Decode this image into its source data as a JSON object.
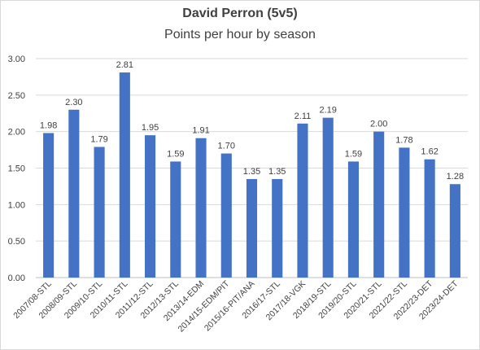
{
  "chart_data": {
    "type": "bar",
    "title": "David Perron (5v5)",
    "subtitle": "Points per hour by season",
    "xlabel": "",
    "ylabel": "",
    "ylim": [
      0,
      3
    ],
    "yticks": [
      "0.00",
      "0.50",
      "1.00",
      "1.50",
      "2.00",
      "2.50",
      "3.00"
    ],
    "grid": true,
    "legend": "none",
    "bar_color": "#4472c4",
    "categories": [
      "2007/08-STL",
      "2008/09-STL",
      "2009/10-STL",
      "2010/11-STL",
      "2011/12-STL",
      "2012/13-STL",
      "2013/14-EDM",
      "2014/15-EDM/PIT",
      "2015/16-PIT/ANA",
      "2016/17-STL",
      "2017/18-VGK",
      "2018/19-STL",
      "2019/20-STL",
      "2020/21-STL",
      "2021/22-STL",
      "2022/23-DET",
      "2023/24-DET"
    ],
    "values": [
      1.98,
      2.3,
      1.79,
      2.81,
      1.95,
      1.59,
      1.91,
      1.7,
      1.35,
      1.35,
      2.11,
      2.19,
      1.59,
      2.0,
      1.78,
      1.62,
      1.28
    ],
    "value_labels": [
      "1.98",
      "2.30",
      "1.79",
      "2.81",
      "1.95",
      "1.59",
      "1.91",
      "1.70",
      "1.35",
      "1.35",
      "2.11",
      "2.19",
      "1.59",
      "2.00",
      "1.78",
      "1.62",
      "1.28"
    ]
  }
}
